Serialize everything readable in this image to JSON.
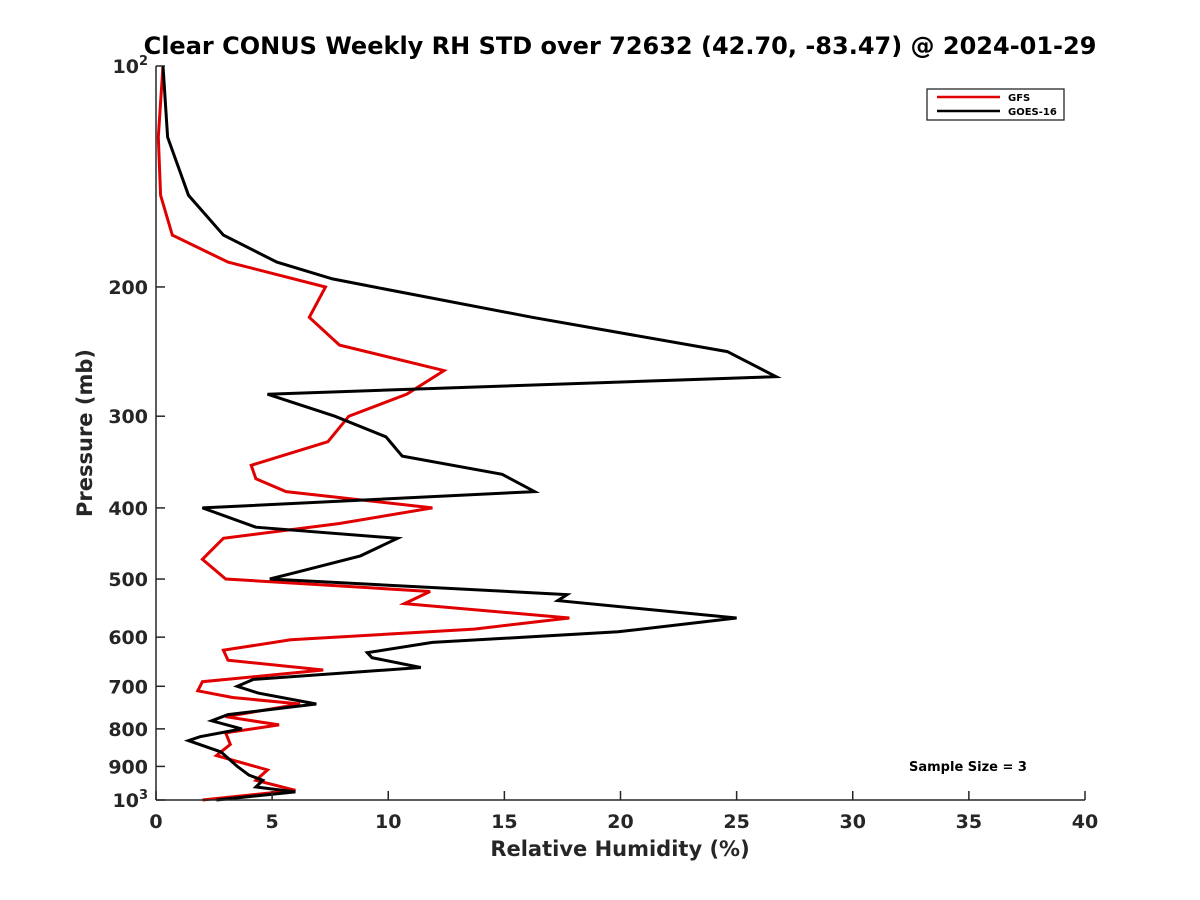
{
  "chart_data": {
    "type": "line",
    "title": "Clear CONUS Weekly RH STD over 72632 (42.70, -83.47) @ 2024-01-29",
    "xlabel": "Relative Humidity (%)",
    "ylabel": "Pressure (mb)",
    "xlim": [
      0,
      40
    ],
    "ylim": [
      100,
      1000
    ],
    "y_scale": "log",
    "y_reversed": true,
    "grid": false,
    "legend_position": "top-right",
    "x_ticks": [
      "0",
      "5",
      "10",
      "15",
      "20",
      "25",
      "30",
      "35",
      "40"
    ],
    "y_ticks": [
      {
        "value": 100,
        "base": "10",
        "exp": "2"
      },
      {
        "value": 200,
        "label": "200"
      },
      {
        "value": 300,
        "label": "300"
      },
      {
        "value": 400,
        "label": "400"
      },
      {
        "value": 500,
        "label": "500"
      },
      {
        "value": 600,
        "label": "600"
      },
      {
        "value": 700,
        "label": "700"
      },
      {
        "value": 800,
        "label": "800"
      },
      {
        "value": 900,
        "label": "900"
      },
      {
        "value": 1000,
        "base": "10",
        "exp": "3"
      }
    ],
    "annotation": "Sample Size = 3",
    "series": [
      {
        "name": "GFS",
        "color": "#e00000",
        "points": [
          [
            0.3,
            100
          ],
          [
            0.1,
            125
          ],
          [
            0.2,
            150
          ],
          [
            0.7,
            170
          ],
          [
            3.1,
            185
          ],
          [
            7.3,
            200
          ],
          [
            6.6,
            220
          ],
          [
            7.9,
            240
          ],
          [
            12.4,
            260
          ],
          [
            10.8,
            280
          ],
          [
            8.3,
            300
          ],
          [
            7.4,
            325
          ],
          [
            4.1,
            350
          ],
          [
            4.3,
            365
          ],
          [
            5.6,
            380
          ],
          [
            11.9,
            400
          ],
          [
            7.9,
            420
          ],
          [
            2.9,
            440
          ],
          [
            2.0,
            470
          ],
          [
            3.0,
            500
          ],
          [
            11.8,
            520
          ],
          [
            10.7,
            540
          ],
          [
            17.8,
            565
          ],
          [
            13.7,
            585
          ],
          [
            5.8,
            605
          ],
          [
            2.9,
            625
          ],
          [
            3.1,
            645
          ],
          [
            7.2,
            665
          ],
          [
            2.0,
            690
          ],
          [
            1.8,
            710
          ],
          [
            3.3,
            725
          ],
          [
            6.2,
            740
          ],
          [
            3.0,
            770
          ],
          [
            5.3,
            790
          ],
          [
            3.0,
            810
          ],
          [
            3.2,
            840
          ],
          [
            2.6,
            870
          ],
          [
            4.8,
            910
          ],
          [
            4.3,
            940
          ],
          [
            6.0,
            970
          ],
          [
            2.0,
            1000
          ]
        ]
      },
      {
        "name": "GOES-16",
        "color": "#000000",
        "points": [
          [
            0.3,
            100
          ],
          [
            0.5,
            125
          ],
          [
            1.4,
            150
          ],
          [
            2.9,
            170
          ],
          [
            5.2,
            185
          ],
          [
            7.6,
            195
          ],
          [
            9.4,
            200
          ],
          [
            16.2,
            220
          ],
          [
            24.6,
            245
          ],
          [
            26.7,
            265
          ],
          [
            4.8,
            280
          ],
          [
            7.7,
            300
          ],
          [
            9.9,
            320
          ],
          [
            10.6,
            340
          ],
          [
            14.9,
            360
          ],
          [
            16.3,
            380
          ],
          [
            2.0,
            400
          ],
          [
            4.3,
            425
          ],
          [
            10.4,
            440
          ],
          [
            8.8,
            465
          ],
          [
            6.0,
            490
          ],
          [
            4.9,
            500
          ],
          [
            17.7,
            525
          ],
          [
            17.3,
            535
          ],
          [
            25.0,
            565
          ],
          [
            19.9,
            590
          ],
          [
            11.9,
            610
          ],
          [
            9.1,
            630
          ],
          [
            9.3,
            640
          ],
          [
            11.4,
            660
          ],
          [
            4.2,
            685
          ],
          [
            3.5,
            700
          ],
          [
            4.4,
            715
          ],
          [
            6.9,
            740
          ],
          [
            3.1,
            765
          ],
          [
            2.4,
            780
          ],
          [
            3.7,
            800
          ],
          [
            1.9,
            820
          ],
          [
            1.4,
            830
          ],
          [
            2.8,
            860
          ],
          [
            3.5,
            900
          ],
          [
            4.0,
            925
          ],
          [
            4.6,
            940
          ],
          [
            4.3,
            960
          ],
          [
            6.0,
            975
          ],
          [
            2.6,
            1000
          ]
        ]
      }
    ]
  }
}
